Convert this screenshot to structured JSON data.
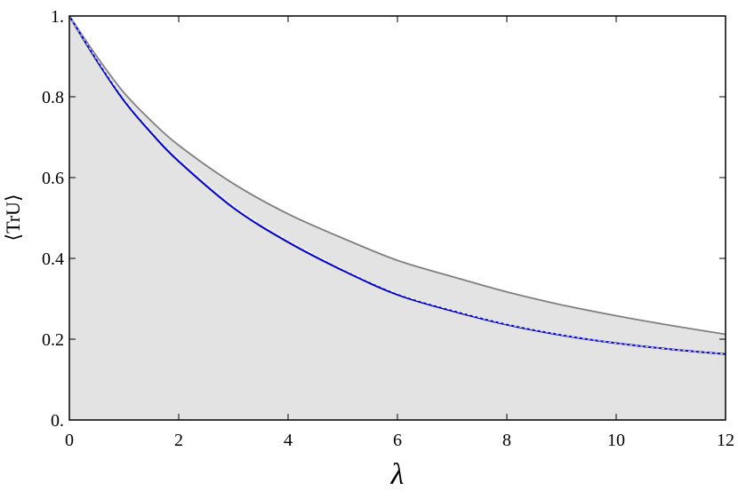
{
  "chart_data": {
    "type": "line",
    "title": "",
    "xlabel": "λ",
    "ylabel": "⟨TrU⟩",
    "xlim": [
      0,
      12
    ],
    "ylim": [
      0,
      1
    ],
    "x_ticks": [
      0,
      2,
      4,
      6,
      8,
      10,
      12
    ],
    "x_tick_labels": [
      "0",
      "2",
      "4",
      "6",
      "8",
      "10",
      "12"
    ],
    "y_ticks": [
      0,
      0.2,
      0.4,
      0.6,
      0.8,
      1
    ],
    "y_tick_labels": [
      "0.",
      "0.2",
      "0.4",
      "0.6",
      "0.8",
      "1."
    ],
    "grid": false,
    "legend": "none",
    "colors": {
      "fill": "#e3e3e3",
      "gray_curve": "#808080",
      "blue_curve": "#0000cc",
      "dashed_curve": "#ffffff"
    },
    "series": [
      {
        "style": "gray-solid",
        "x": [
          0,
          0.5,
          1,
          1.5,
          2,
          3,
          4,
          5,
          6,
          7,
          8,
          9,
          10,
          11,
          12
        ],
        "y": [
          1.0,
          0.9,
          0.81,
          0.74,
          0.68,
          0.585,
          0.51,
          0.45,
          0.395,
          0.355,
          0.317,
          0.285,
          0.258,
          0.234,
          0.212
        ]
      },
      {
        "style": "blue-solid",
        "x": [
          0,
          0.5,
          1,
          1.5,
          2,
          3,
          4,
          5,
          6,
          7,
          8,
          9,
          10,
          11,
          12
        ],
        "y": [
          1.0,
          0.89,
          0.79,
          0.71,
          0.64,
          0.525,
          0.44,
          0.37,
          0.31,
          0.27,
          0.236,
          0.21,
          0.19,
          0.175,
          0.163
        ]
      },
      {
        "style": "white-dashed",
        "x": [
          0,
          0.5,
          1,
          1.5,
          2,
          3,
          4,
          5,
          6,
          7,
          8,
          9,
          10,
          11,
          12
        ],
        "y": [
          1.0,
          0.893,
          0.796,
          0.717,
          0.648,
          0.532,
          0.446,
          0.374,
          0.313,
          0.272,
          0.237,
          0.211,
          0.19,
          0.175,
          0.163
        ]
      }
    ]
  }
}
